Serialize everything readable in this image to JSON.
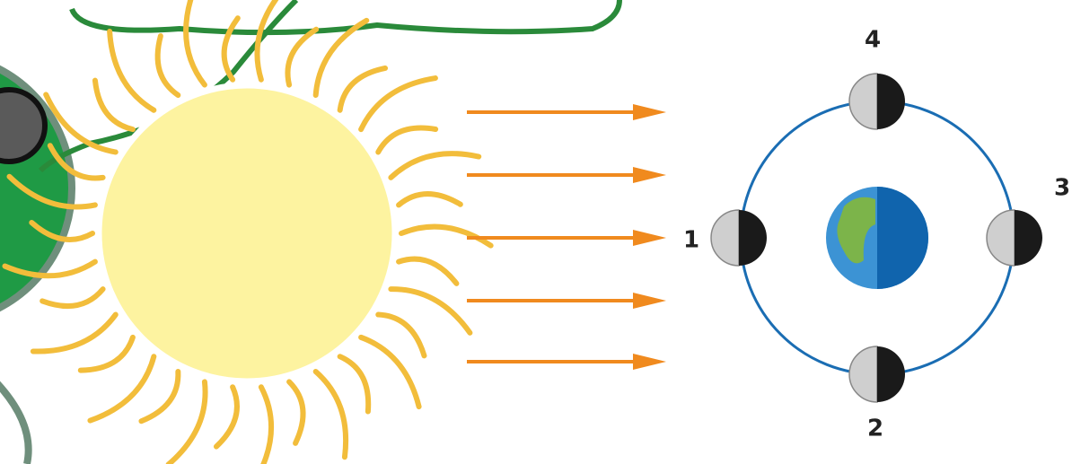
{
  "moons": [
    {
      "label": "1"
    },
    {
      "label": "2"
    },
    {
      "label": "3"
    },
    {
      "label": "4"
    }
  ]
}
